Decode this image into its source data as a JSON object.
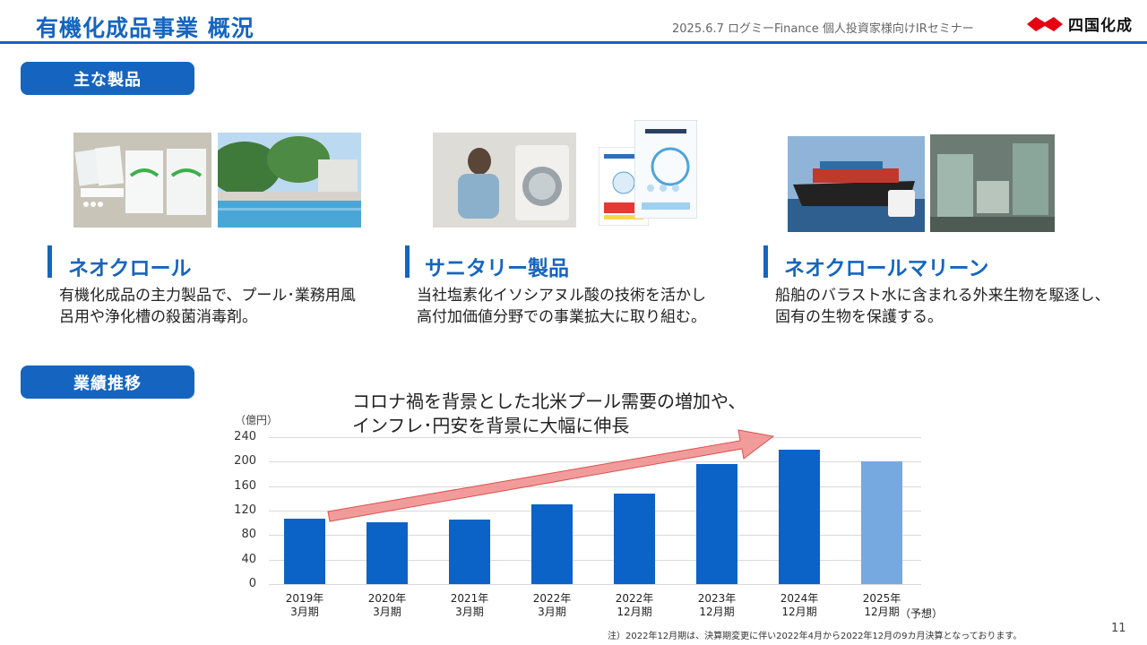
{
  "header": {
    "title": "有機化成品事業 概況",
    "event": "2025.6.7 ログミーFinance 個人投資家様向けIRセミナー",
    "logo_text": "四国化成"
  },
  "sections": {
    "products_label": "主な製品",
    "performance_label": "業績推移"
  },
  "products": [
    {
      "name": "ネオクロール",
      "desc_line1": "有機化成品の主力製品で、プール･業務用風",
      "desc_line2": "呂用や浄化槽の殺菌消毒剤。"
    },
    {
      "name": "サニタリー製品",
      "desc_line1": "当社塩素化イソシアヌル酸の技術を活かし",
      "desc_line2": "高付加価値分野での事業拡大に取り組む。"
    },
    {
      "name": "ネオクロールマリーン",
      "desc_line1": "船舶のバラスト水に含まれる外来生物を駆逐し、",
      "desc_line2": "固有の生物を保護する。"
    }
  ],
  "chart_data": {
    "type": "bar",
    "unit_label": "（億円）",
    "callout_line1": "コロナ禍を背景とした北米プール需要の増加や、",
    "callout_line2": "インフレ･円安を背景に大幅に伸長",
    "ylim": [
      0,
      240
    ],
    "yticks": [
      "240",
      "200",
      "160",
      "120",
      "80",
      "40",
      "0"
    ],
    "categories": [
      {
        "line1": "2019年",
        "line2": "3月期"
      },
      {
        "line1": "2020年",
        "line2": "3月期"
      },
      {
        "line1": "2021年",
        "line2": "3月期"
      },
      {
        "line1": "2022年",
        "line2": "3月期"
      },
      {
        "line1": "2022年",
        "line2": "12月期"
      },
      {
        "line1": "2023年",
        "line2": "12月期"
      },
      {
        "line1": "2024年",
        "line2": "12月期"
      },
      {
        "line1": "2025年",
        "line2": "12月期"
      }
    ],
    "forecast_label": "（予想）",
    "values": [
      107,
      101,
      106,
      130,
      148,
      196,
      219,
      200
    ],
    "forecast_index": 7,
    "bar_color": "#0b62c7",
    "forecast_color": "#76a9df",
    "arrow_color": "#f08a8a",
    "grid": true
  },
  "footer": {
    "note": "注）2022年12月期は、決算期変更に伴い2022年4月から2022年12月の9カ月決算となっております。",
    "page": "11"
  }
}
